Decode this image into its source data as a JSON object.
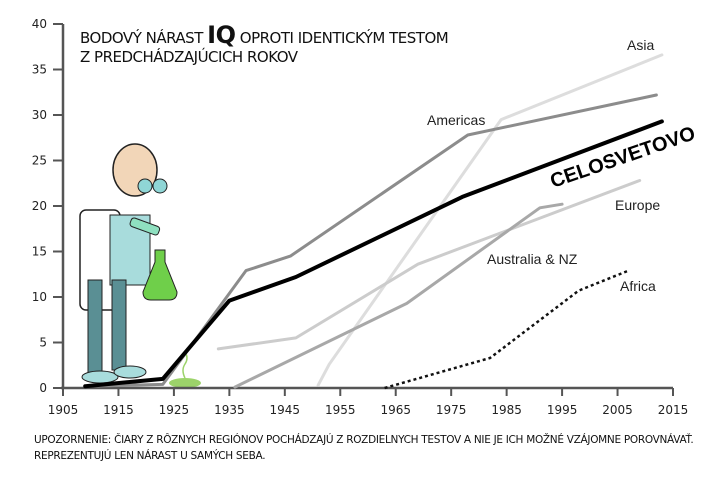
{
  "chart_data": {
    "type": "line",
    "title_part1": "BODOVÝ NÁRAST",
    "title_big": "IQ",
    "title_part2": "OPROTI IDENTICKÝM TESTOM",
    "title_line2": "Z PREDCHÁDZAJÚCICH ROKOV",
    "xlabel": "",
    "ylabel": "",
    "xlim": [
      1905,
      2015
    ],
    "ylim": [
      0,
      40
    ],
    "xticks": [
      1905,
      1915,
      1925,
      1935,
      1945,
      1955,
      1965,
      1975,
      1985,
      1995,
      2005,
      2015
    ],
    "yticks": [
      0,
      5,
      10,
      15,
      20,
      25,
      30,
      35,
      40
    ],
    "grid": false,
    "series": [
      {
        "name": "Asia",
        "color": "#dddddd",
        "style": "solid",
        "points": [
          [
            1951,
            0.3
          ],
          [
            1953,
            2.6
          ],
          [
            1984,
            29.5
          ],
          [
            2013,
            36.6
          ]
        ]
      },
      {
        "name": "Americas",
        "color": "#8c8c8c",
        "style": "solid",
        "points": [
          [
            1909,
            0.2
          ],
          [
            1923,
            0.4
          ],
          [
            1938,
            12.9
          ],
          [
            1946,
            14.5
          ],
          [
            1978,
            27.8
          ],
          [
            2012,
            32.2
          ]
        ]
      },
      {
        "name": "Europe",
        "color": "#cccccc",
        "style": "solid",
        "points": [
          [
            1933,
            4.3
          ],
          [
            1947,
            5.5
          ],
          [
            1969,
            13.6
          ],
          [
            2009,
            22.8
          ]
        ]
      },
      {
        "name": "Australia & NZ",
        "color": "#a8a8a8",
        "style": "solid",
        "points": [
          [
            1936,
            0.1
          ],
          [
            1967,
            9.3
          ],
          [
            1991,
            19.8
          ],
          [
            1995,
            20.2
          ]
        ]
      },
      {
        "name": "Africa",
        "color": "#111111",
        "style": "dotted",
        "points": [
          [
            1963,
            0
          ],
          [
            1982,
            3.3
          ],
          [
            1998,
            10.7
          ],
          [
            2007,
            12.9
          ]
        ]
      },
      {
        "name": "CELOSVETOVO",
        "color": "#000000",
        "style": "bold",
        "points": [
          [
            1909,
            0.2
          ],
          [
            1923,
            1.0
          ],
          [
            1935,
            9.6
          ],
          [
            1947,
            12.2
          ],
          [
            1977,
            21.0
          ],
          [
            2013,
            29.3
          ]
        ]
      }
    ],
    "annotation": "UPOZORNENIE: ČIARY Z RÔZNYCH REGIÓNOV POCHÁDZAJÚ Z ROZDIELNYCH TESTOV A NIE JE ICH MOŽNÉ VZÁJOMNE POROVNÁVAŤ. REPREZENTUJÚ LEN NÁRAST U SAMÝCH SEBA."
  }
}
